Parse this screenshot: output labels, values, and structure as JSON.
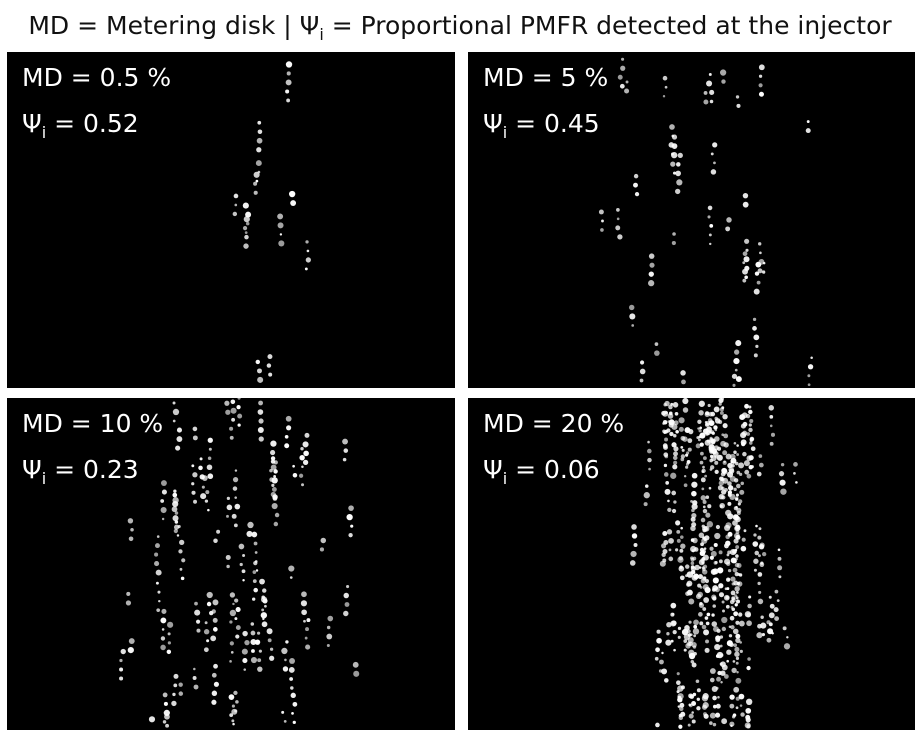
{
  "title": {
    "main": "MD = Metering disk | Ψ",
    "subscript": "i",
    "rest": " = Proportional PMFR detected at the injector"
  },
  "panels": [
    {
      "md_label": "MD = 0.5 %",
      "psi": {
        "symbol": "Ψ",
        "subscript": "i",
        "text": " = 0.52"
      }
    },
    {
      "md_label": "MD = 5 %",
      "psi": {
        "symbol": "Ψ",
        "subscript": "i",
        "text": " = 0.45"
      }
    },
    {
      "md_label": "MD = 10 %",
      "psi": {
        "symbol": "Ψ",
        "subscript": "i",
        "text": " = 0.23"
      }
    },
    {
      "md_label": "MD = 20 %",
      "psi": {
        "symbol": "Ψ",
        "subscript": "i",
        "text": " = 0.06"
      }
    }
  ]
}
